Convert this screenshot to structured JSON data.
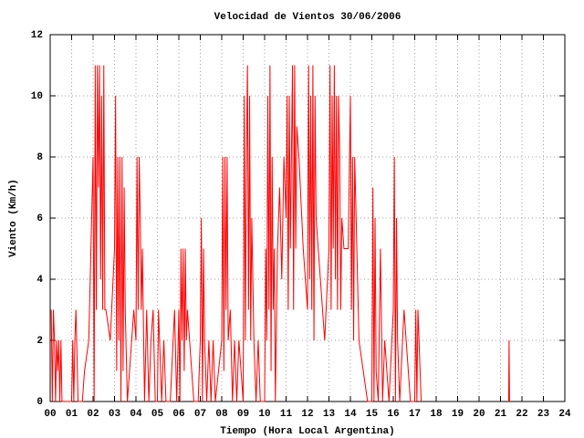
{
  "chart_data": {
    "type": "line",
    "title": "Velocidad de Vientos 30/06/2006",
    "x_label": "Tiempo (Hora Local Argentina)",
    "y_label": "Viento (Km/h)",
    "xlim": [
      0,
      24
    ],
    "ylim": [
      0,
      12
    ],
    "xticks": [
      {
        "value": 0,
        "label": "00"
      },
      {
        "value": 1,
        "label": "01"
      },
      {
        "value": 2,
        "label": "02"
      },
      {
        "value": 3,
        "label": "03"
      },
      {
        "value": 4,
        "label": "04"
      },
      {
        "value": 5,
        "label": "05"
      },
      {
        "value": 6,
        "label": "06"
      },
      {
        "value": 7,
        "label": "07"
      },
      {
        "value": 8,
        "label": "08"
      },
      {
        "value": 9,
        "label": "09"
      },
      10,
      11,
      12,
      13,
      14,
      15,
      16,
      17,
      18,
      19,
      20,
      21,
      22,
      23,
      24
    ],
    "yticks": [
      0,
      2,
      4,
      6,
      8,
      10,
      12
    ],
    "grid": true,
    "color": "#ff0000",
    "x": [
      0.05,
      0.1,
      0.15,
      0.2,
      0.25,
      0.3,
      0.35,
      0.4,
      0.45,
      0.5,
      0.55,
      0.6,
      0.8,
      1.0,
      1.05,
      1.1,
      1.15,
      1.2,
      1.3,
      1.5,
      1.6,
      1.8,
      2.0,
      2.05,
      2.1,
      2.15,
      2.2,
      2.25,
      2.3,
      2.35,
      2.4,
      2.45,
      2.5,
      2.55,
      2.6,
      2.8,
      3.0,
      3.05,
      3.1,
      3.15,
      3.2,
      3.25,
      3.3,
      3.35,
      3.4,
      3.45,
      3.5,
      3.6,
      3.8,
      3.9,
      4.0,
      4.05,
      4.1,
      4.15,
      4.2,
      4.25,
      4.3,
      4.4,
      4.5,
      4.6,
      4.7,
      4.8,
      4.9,
      5.0,
      5.05,
      5.1,
      5.2,
      5.3,
      5.4,
      5.6,
      5.8,
      5.9,
      6.0,
      6.05,
      6.1,
      6.15,
      6.2,
      6.25,
      6.3,
      6.35,
      6.4,
      6.5,
      6.7,
      6.9,
      7.0,
      7.05,
      7.1,
      7.15,
      7.2,
      7.3,
      7.4,
      7.5,
      7.6,
      7.7,
      8.0,
      8.05,
      8.1,
      8.15,
      8.2,
      8.25,
      8.3,
      8.4,
      8.5,
      8.6,
      8.7,
      8.8,
      9.0,
      9.05,
      9.1,
      9.15,
      9.2,
      9.25,
      9.3,
      9.35,
      9.4,
      9.5,
      9.6,
      9.7,
      9.8,
      10.0,
      10.05,
      10.1,
      10.15,
      10.2,
      10.25,
      10.3,
      10.35,
      10.4,
      10.45,
      10.5,
      10.6,
      10.7,
      10.8,
      10.9,
      11.0,
      11.05,
      11.1,
      11.15,
      11.2,
      11.25,
      11.3,
      11.35,
      11.4,
      11.45,
      11.5,
      11.6,
      11.8,
      12.0,
      12.05,
      12.1,
      12.15,
      12.2,
      12.25,
      12.3,
      12.35,
      12.4,
      12.5,
      12.6,
      12.8,
      13.0,
      13.05,
      13.1,
      13.15,
      13.2,
      13.25,
      13.3,
      13.35,
      13.4,
      13.45,
      13.5,
      13.55,
      13.6,
      13.7,
      13.9,
      14.0,
      14.05,
      14.1,
      14.15,
      14.2,
      14.3,
      14.4,
      14.6,
      14.8,
      15.0,
      15.05,
      15.1,
      15.15,
      15.2,
      15.3,
      15.4,
      15.5,
      15.6,
      15.8,
      16.0,
      16.05,
      16.1,
      16.15,
      16.2,
      16.3,
      16.5,
      16.6,
      16.8,
      17.0,
      17.05,
      17.1,
      17.15,
      17.2,
      17.3,
      19,
      21.38,
      21.4,
      21.42
    ],
    "values": [
      3,
      0,
      3,
      2,
      0,
      2,
      1,
      2,
      0,
      2,
      0,
      0,
      0,
      0,
      2,
      0,
      2,
      3,
      0,
      0,
      1,
      2,
      8,
      0,
      11,
      3,
      11,
      7,
      11,
      4,
      10,
      3,
      11,
      3,
      3,
      2,
      5,
      10,
      1,
      8,
      2,
      8,
      0,
      8,
      1,
      7,
      3,
      0,
      2,
      3,
      2,
      8,
      3,
      8,
      6,
      3,
      5,
      0,
      3,
      0,
      2,
      3,
      0,
      0,
      3,
      2,
      0,
      2,
      0,
      0,
      3,
      0,
      3,
      0,
      5,
      2,
      5,
      1,
      5,
      2,
      3,
      2,
      0,
      0,
      2,
      6,
      0,
      5,
      2,
      0,
      2,
      0,
      2,
      0,
      2,
      8,
      1,
      8,
      3,
      8,
      2,
      3,
      0,
      2,
      0,
      2,
      0,
      10,
      2,
      8,
      11,
      3,
      10,
      2,
      6,
      2,
      0,
      2,
      0,
      0,
      5,
      2,
      10,
      3,
      11,
      1,
      8,
      3,
      5,
      0,
      5,
      7,
      4,
      8,
      6,
      10,
      3,
      10,
      5,
      8,
      11,
      3,
      11,
      5,
      9,
      8,
      5,
      3,
      11,
      4,
      10,
      3,
      11,
      2,
      10,
      6,
      5,
      4,
      2,
      5,
      11,
      3,
      10,
      5,
      11,
      4,
      10,
      3,
      10,
      8,
      3,
      6,
      5,
      5,
      10,
      3,
      8,
      2,
      8,
      5,
      2,
      1,
      0,
      0,
      7,
      0,
      6,
      1,
      0,
      5,
      0,
      2,
      0,
      3,
      8,
      0,
      6,
      2,
      0,
      3,
      2,
      0,
      0,
      3,
      0,
      3,
      2,
      0,
      null,
      0,
      2,
      0
    ]
  }
}
